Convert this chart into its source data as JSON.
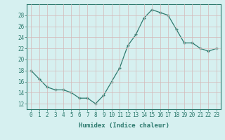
{
  "x": [
    0,
    1,
    2,
    3,
    4,
    5,
    6,
    7,
    8,
    9,
    10,
    11,
    12,
    13,
    14,
    15,
    16,
    17,
    18,
    19,
    20,
    21,
    22,
    23
  ],
  "y": [
    18,
    16.5,
    15,
    14.5,
    14.5,
    14,
    13,
    13,
    12,
    13.5,
    16,
    18.5,
    22.5,
    24.5,
    27.5,
    29,
    28.5,
    28,
    25.5,
    23,
    23,
    22,
    21.5,
    22
  ],
  "xlabel": "Humidex (Indice chaleur)",
  "xlim": [
    -0.5,
    23.5
  ],
  "ylim": [
    11,
    30
  ],
  "yticks": [
    12,
    14,
    16,
    18,
    20,
    22,
    24,
    26,
    28
  ],
  "xticks": [
    0,
    1,
    2,
    3,
    4,
    5,
    6,
    7,
    8,
    9,
    10,
    11,
    12,
    13,
    14,
    15,
    16,
    17,
    18,
    19,
    20,
    21,
    22,
    23
  ],
  "line_color": "#2d7a6e",
  "marker_color": "#2d7a6e",
  "bg_color": "#d6f0f0",
  "grid_color": "#c8e8e8",
  "label_fontsize": 6.5,
  "tick_fontsize": 5.5
}
